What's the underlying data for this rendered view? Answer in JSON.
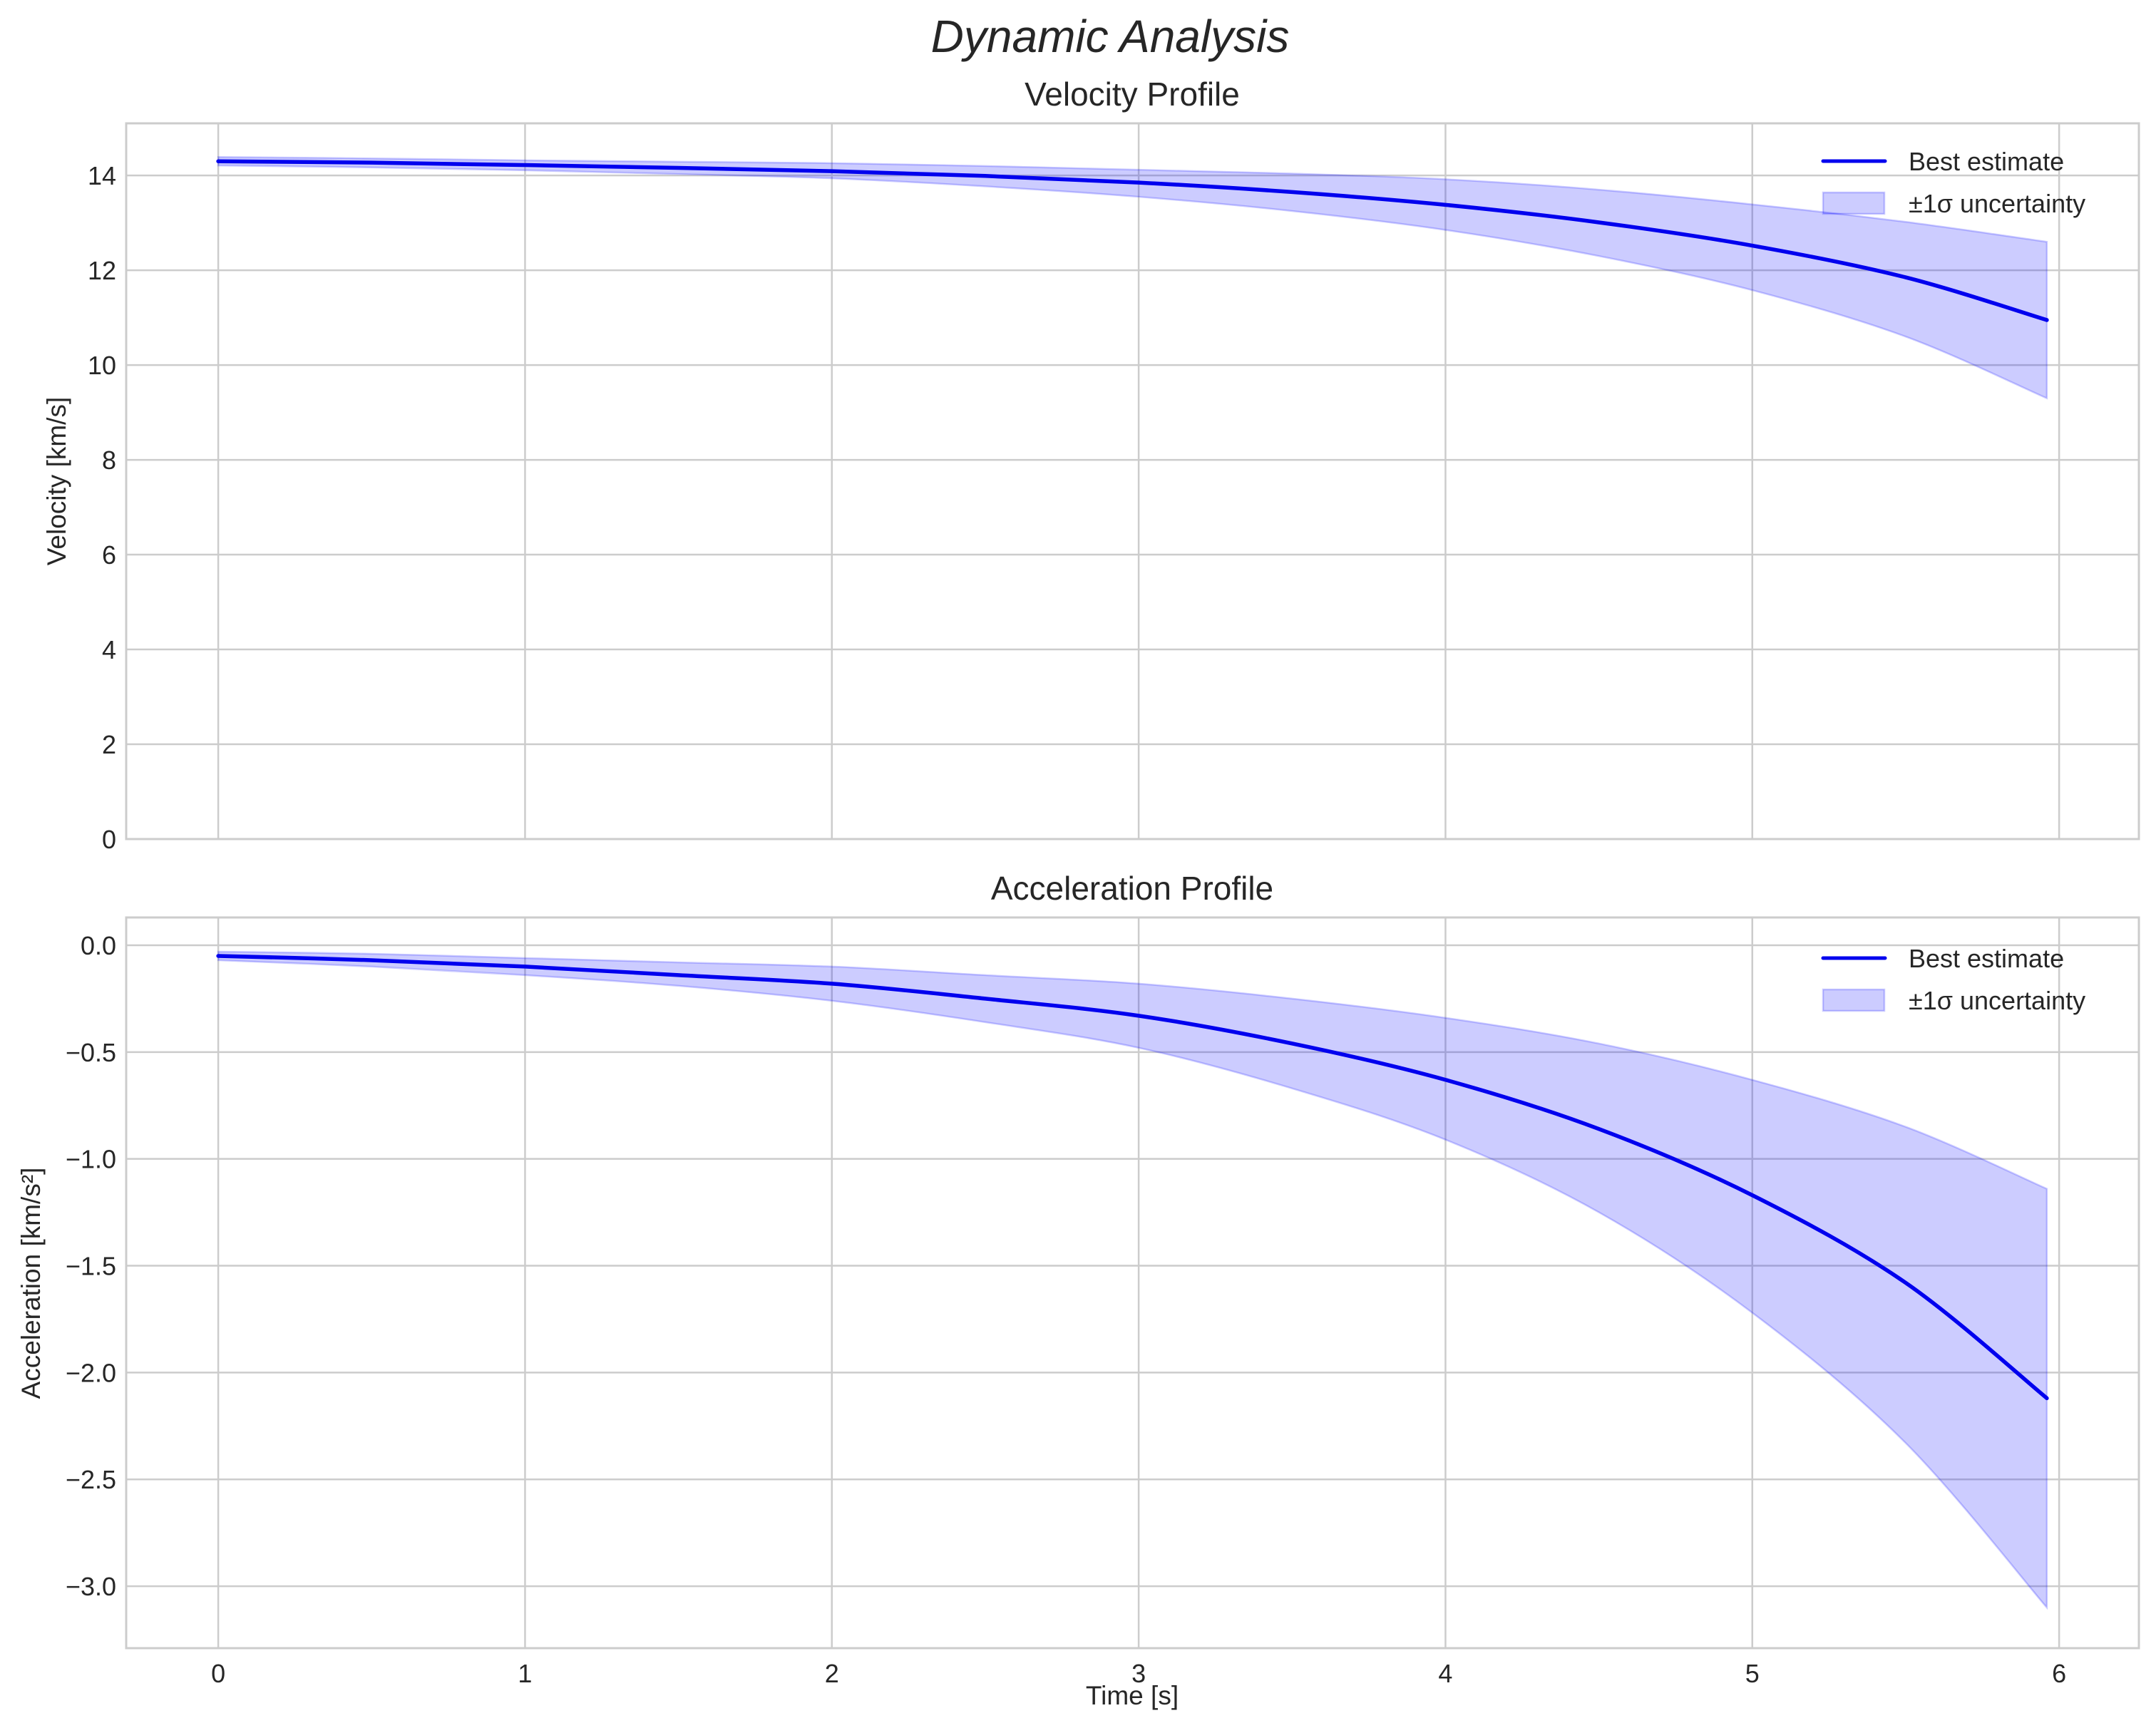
{
  "figure": {
    "suptitle": "Dynamic Analysis",
    "background": "#ffffff",
    "colors": {
      "line": "#0000ee",
      "band_fill": "#0000ff",
      "band_alpha": 0.2,
      "grid": "#cccccc",
      "text": "#262626"
    }
  },
  "chart_data": [
    {
      "type": "line",
      "title": "Velocity Profile",
      "xlabel": "",
      "ylabel": "Velocity [km/s]",
      "xlim": [
        -0.3,
        6.26
      ],
      "ylim": [
        0,
        15.1
      ],
      "xticks": [
        0,
        1,
        2,
        3,
        4,
        5,
        6
      ],
      "xtick_labels": [
        "",
        "",
        "",
        "",
        "",
        "",
        ""
      ],
      "yticks": [
        0,
        2,
        4,
        6,
        8,
        10,
        12,
        14
      ],
      "ytick_labels": [
        "0",
        "2",
        "4",
        "6",
        "8",
        "10",
        "12",
        "14"
      ],
      "grid": true,
      "legend_position": "upper right",
      "legend": [
        "Best estimate",
        "±1σ uncertainty"
      ],
      "x": [
        0,
        0.5,
        1,
        1.5,
        2,
        2.5,
        3,
        3.5,
        4,
        4.5,
        5,
        5.5,
        5.96
      ],
      "series": [
        {
          "name": "Best estimate",
          "kind": "line",
          "values": [
            14.3,
            14.27,
            14.22,
            14.16,
            14.09,
            13.99,
            13.85,
            13.65,
            13.38,
            13.01,
            12.52,
            11.85,
            10.95
          ]
        },
        {
          "name": "±1σ uncertainty (upper)",
          "kind": "band-upper",
          "values": [
            14.39,
            14.36,
            14.32,
            14.29,
            14.26,
            14.2,
            14.12,
            14.04,
            13.92,
            13.7,
            13.39,
            13.02,
            12.6
          ]
        },
        {
          "name": "±1σ uncertainty (lower)",
          "kind": "band-lower",
          "values": [
            14.21,
            14.17,
            14.11,
            14.03,
            13.94,
            13.77,
            13.55,
            13.25,
            12.85,
            12.3,
            11.58,
            10.6,
            9.3
          ]
        }
      ]
    },
    {
      "type": "line",
      "title": "Acceleration Profile",
      "xlabel": "Time [s]",
      "ylabel": "Acceleration [km/s²]",
      "xlim": [
        -0.3,
        6.26
      ],
      "ylim": [
        -3.29,
        0.13
      ],
      "xticks": [
        0,
        1,
        2,
        3,
        4,
        5,
        6
      ],
      "xtick_labels": [
        "0",
        "1",
        "2",
        "3",
        "4",
        "5",
        "6"
      ],
      "yticks": [
        0.0,
        -0.5,
        -1.0,
        -1.5,
        -2.0,
        -2.5,
        -3.0
      ],
      "ytick_labels": [
        "0.0",
        "−0.5",
        "−1.0",
        "−1.5",
        "−2.0",
        "−2.5",
        "−3.0"
      ],
      "grid": true,
      "legend_position": "upper right",
      "legend": [
        "Best estimate",
        "±1σ uncertainty"
      ],
      "x": [
        0,
        0.5,
        1,
        1.5,
        2,
        2.5,
        3,
        3.5,
        4,
        4.5,
        5,
        5.5,
        5.96
      ],
      "series": [
        {
          "name": "Best estimate",
          "kind": "line",
          "values": [
            -0.05,
            -0.07,
            -0.1,
            -0.14,
            -0.18,
            -0.25,
            -0.33,
            -0.46,
            -0.63,
            -0.86,
            -1.17,
            -1.58,
            -2.12
          ]
        },
        {
          "name": "±1σ uncertainty (upper)",
          "kind": "band-upper",
          "values": [
            -0.03,
            -0.04,
            -0.06,
            -0.08,
            -0.1,
            -0.14,
            -0.18,
            -0.25,
            -0.34,
            -0.46,
            -0.63,
            -0.85,
            -1.14
          ]
        },
        {
          "name": "±1σ uncertainty (lower)",
          "kind": "band-lower",
          "values": [
            -0.07,
            -0.1,
            -0.14,
            -0.19,
            -0.26,
            -0.36,
            -0.48,
            -0.67,
            -0.91,
            -1.25,
            -1.72,
            -2.33,
            -3.1
          ]
        }
      ]
    }
  ]
}
